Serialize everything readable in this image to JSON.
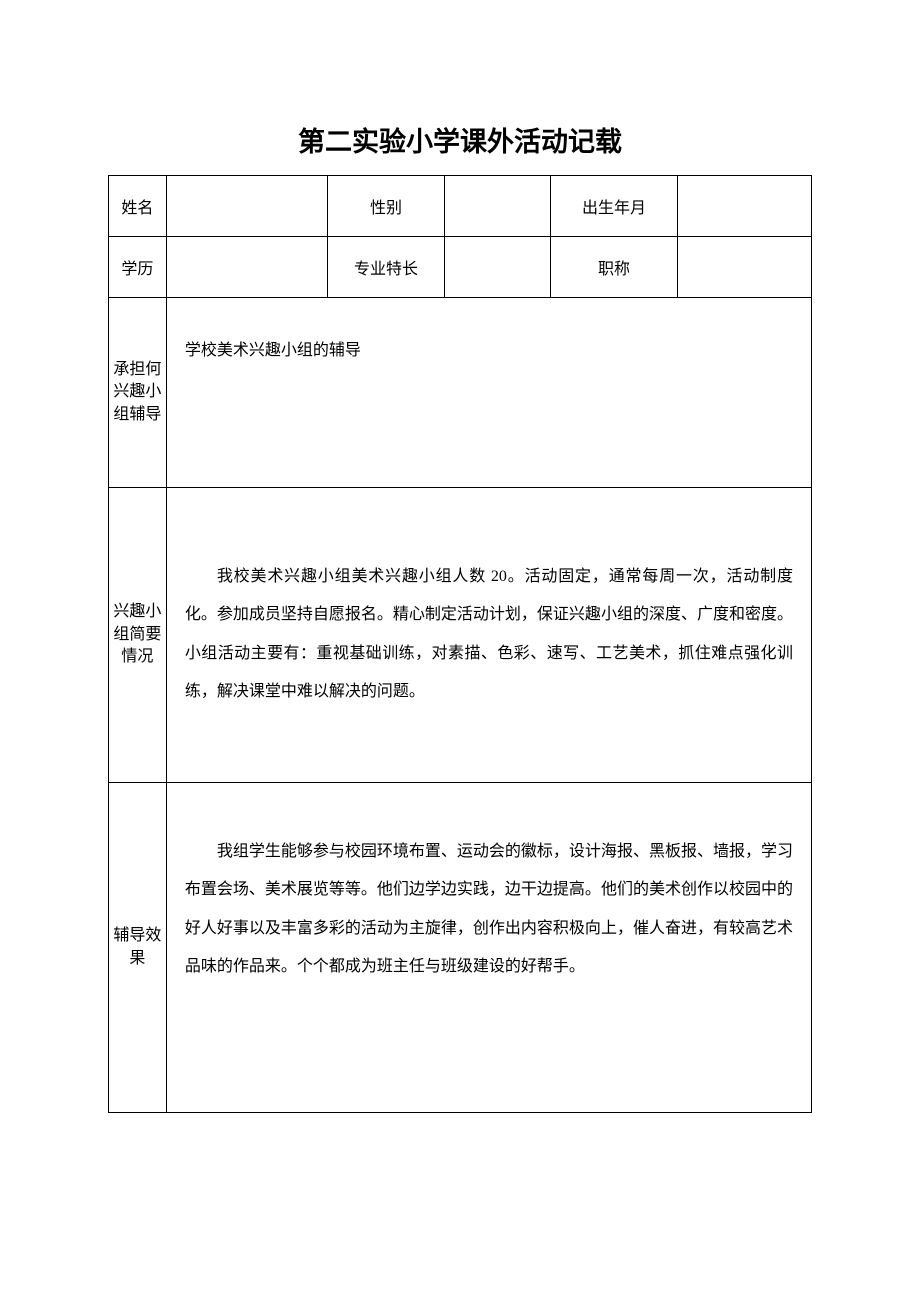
{
  "title": "第二实验小学课外活动记载",
  "header_rows": {
    "row1": {
      "label1": "姓名",
      "value1": "",
      "label2": "性别",
      "value2": "",
      "label3": "出生年月",
      "value3": ""
    },
    "row2": {
      "label1": "学历",
      "value1": "",
      "label2": "专业特长",
      "value2": "",
      "label3": "职称",
      "value3": ""
    }
  },
  "sections": {
    "s1": {
      "label": "承担何兴趣小组辅导",
      "content": "学校美术兴趣小组的辅导"
    },
    "s2": {
      "label": "兴趣小组简要情况",
      "content": "我校美术兴趣小组美术兴趣小组人数 20。活动固定，通常每周一次，活动制度化。参加成员坚持自愿报名。精心制定活动计划，保证兴趣小组的深度、广度和密度。小组活动主要有：重视基础训练，对素描、色彩、速写、工艺美术，抓住难点强化训练，解决课堂中难以解决的问题。"
    },
    "s3": {
      "label": "辅导效果",
      "content": "我组学生能够参与校园环境布置、运动会的徽标，设计海报、黑板报、墙报，学习布置会场、美术展览等等。他们边学边实践，边干边提高。他们的美术创作以校园中的好人好事以及丰富多彩的活动为主旋律，创作出内容积极向上，催人奋进，有较高艺术品味的作品来。个个都成为班主任与班级建设的好帮手。"
    }
  }
}
